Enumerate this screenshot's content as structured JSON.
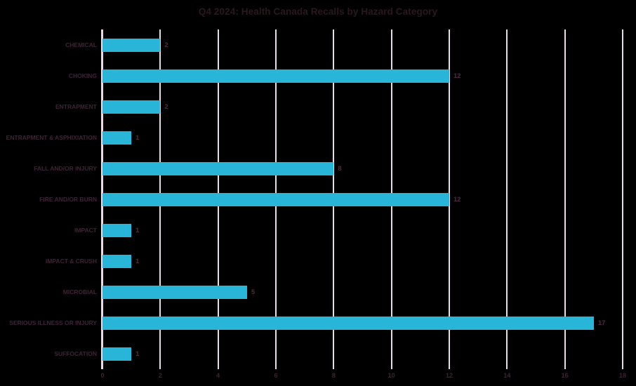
{
  "title": "Q4 2024: Health Canada Recalls by Hazard Category",
  "colors": {
    "background": "#000000",
    "bar": "#29b5d8",
    "gridline": "#e9dce7",
    "title_text": "#2b171e",
    "category_text": "#3f2334",
    "value_text": "#4f2b41",
    "tick_text": "#3f2334"
  },
  "chart_data": {
    "type": "bar",
    "orientation": "horizontal",
    "title": "Q4 2024: Health Canada Recalls by Hazard Category",
    "categories": [
      "CHEMICAL",
      "CHOKING",
      "ENTRAPMENT",
      "ENTRAPMENT & ASPHIXIATION",
      "FALL AND/OR INJURY",
      "FIRE AND/OR BURN",
      "IMPACT",
      "IMPACT & CRUSH",
      "MICROBIAL",
      "SERIOUS ILLNESS OR INJURY",
      "SUFFOCATION"
    ],
    "values": [
      2,
      12,
      2,
      1,
      8,
      12,
      1,
      1,
      5,
      17,
      1
    ],
    "data_labels": [
      "2",
      "12",
      "2",
      "1",
      "8",
      "12",
      "1",
      "1",
      "5",
      "17",
      "1"
    ],
    "xlabel": "",
    "ylabel": "",
    "xlim": [
      0,
      18
    ],
    "xticks": [
      0,
      2,
      4,
      6,
      8,
      10,
      12,
      14,
      16,
      18
    ],
    "grid": true,
    "legend": false
  }
}
